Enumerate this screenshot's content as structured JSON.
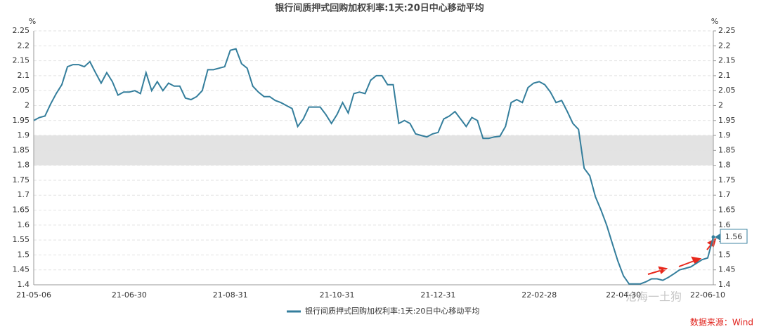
{
  "chart_data": {
    "type": "line",
    "title": "银行间质押式回购加权利率:1天:20日中心移动平均",
    "y_unit": "%",
    "y2_unit": "%",
    "source": "数据来源：Wind",
    "watermark": "沧海一土狗",
    "categories": [
      "21-05-06",
      null,
      null,
      null,
      null,
      null,
      null,
      null,
      null,
      null,
      null,
      null,
      null,
      null,
      null,
      null,
      null,
      "21-06-30",
      null,
      null,
      null,
      null,
      null,
      null,
      null,
      null,
      null,
      null,
      null,
      null,
      null,
      null,
      null,
      null,
      null,
      "21-08-31",
      null,
      null,
      null,
      null,
      null,
      null,
      null,
      null,
      null,
      null,
      null,
      null,
      null,
      null,
      null,
      null,
      null,
      null,
      "21-10-31",
      null,
      null,
      null,
      null,
      null,
      null,
      null,
      null,
      null,
      null,
      null,
      null,
      null,
      null,
      null,
      null,
      null,
      "21-12-31",
      null,
      null,
      null,
      null,
      null,
      null,
      null,
      null,
      null,
      null,
      null,
      null,
      null,
      null,
      null,
      null,
      null,
      "22-02-28",
      null,
      null,
      null,
      null,
      null,
      null,
      null,
      null,
      null,
      null,
      null,
      null,
      null,
      null,
      "22-04-30",
      null,
      null,
      null,
      null,
      null,
      null,
      null,
      null,
      null,
      null,
      null,
      null,
      null,
      null,
      "22-06-10",
      null
    ],
    "series": [
      {
        "name": "银行间质押式回购加权利率:1天:20日中心移动平均",
        "color": "#347e9c",
        "values": [
          1.95,
          1.96,
          1.965,
          2.005,
          2.04,
          2.07,
          2.13,
          2.137,
          2.137,
          2.13,
          2.147,
          2.11,
          2.075,
          2.11,
          2.08,
          2.035,
          2.045,
          2.045,
          2.05,
          2.04,
          2.11,
          2.05,
          2.08,
          2.05,
          2.075,
          2.065,
          2.065,
          2.025,
          2.02,
          2.03,
          2.05,
          2.12,
          2.12,
          2.125,
          2.13,
          2.185,
          2.19,
          2.14,
          2.125,
          2.065,
          2.045,
          2.03,
          2.03,
          2.017,
          2.01,
          2.0,
          1.99,
          1.93,
          1.955,
          1.995,
          1.995,
          1.995,
          1.97,
          1.94,
          1.97,
          2.01,
          1.975,
          2.04,
          2.045,
          2.04,
          2.085,
          2.1,
          2.1,
          2.07,
          2.07,
          1.94,
          1.95,
          1.94,
          1.905,
          1.9,
          1.895,
          1.905,
          1.91,
          1.955,
          1.965,
          1.98,
          1.955,
          1.93,
          1.96,
          1.95,
          1.89,
          1.89,
          1.895,
          1.897,
          1.93,
          2.01,
          2.02,
          2.01,
          2.06,
          2.075,
          2.08,
          2.07,
          2.045,
          2.01,
          2.017,
          1.98,
          1.94,
          1.92,
          1.79,
          1.765,
          1.695,
          1.65,
          1.6,
          1.54,
          1.48,
          1.43,
          1.403,
          1.403,
          1.403,
          1.41,
          1.42,
          1.42,
          1.415,
          1.425,
          1.437,
          1.45,
          1.455,
          1.46,
          1.472,
          1.484,
          1.49,
          1.56
        ]
      }
    ],
    "shaded_band": [
      1.8,
      1.9
    ],
    "ylim": [
      1.4,
      2.25
    ],
    "yticks": [
      1.4,
      1.45,
      1.5,
      1.55,
      1.6,
      1.65,
      1.7,
      1.75,
      1.8,
      1.85,
      1.9,
      1.95,
      2,
      2.05,
      2.1,
      2.15,
      2.2,
      2.25
    ],
    "y2lim": [
      1.4,
      2.25
    ],
    "y2ticks": [
      1.4,
      1.45,
      1.5,
      1.55,
      1.6,
      1.65,
      1.7,
      1.75,
      1.8,
      1.85,
      1.9,
      1.95,
      2,
      2.05,
      2.1,
      2.15,
      2.2,
      2.25
    ],
    "grid": true
  }
}
